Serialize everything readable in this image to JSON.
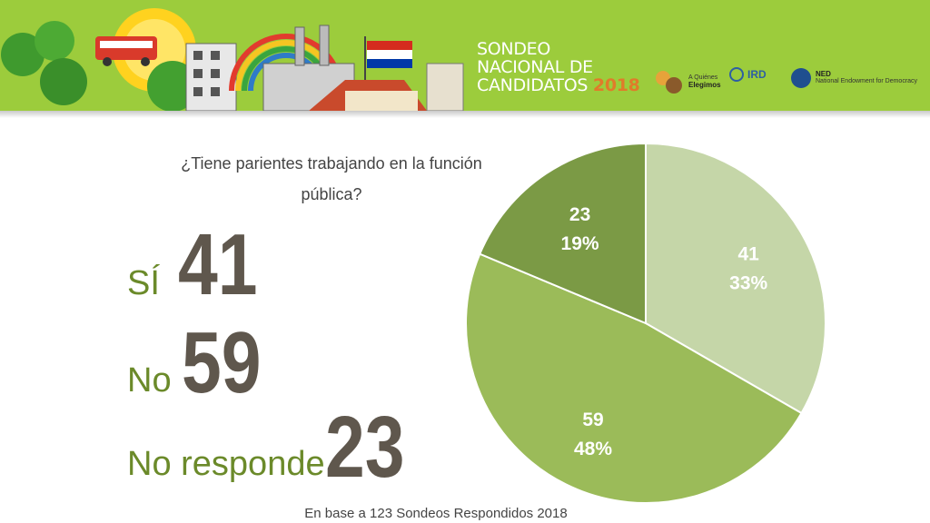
{
  "banner": {
    "title_lines": [
      "SONDEO",
      "NACIONAL DE",
      "CANDIDATOS"
    ],
    "title_year": "2018",
    "logos": [
      {
        "name": "a-quienes-elegimos",
        "lines": [
          "A Quiénes",
          "Elegimos"
        ]
      },
      {
        "name": "ird",
        "lines": [
          "IRD"
        ]
      },
      {
        "name": "ned",
        "lines": [
          "NED",
          "National Endowment for Democracy"
        ]
      }
    ],
    "flag_colors": [
      "#d52b1e",
      "#ffffff",
      "#0038a8"
    ]
  },
  "question": "¿Tiene parientes trabajando en la función pública?",
  "results": [
    {
      "label": "SÍ",
      "value": "41"
    },
    {
      "label": "No",
      "value": "59"
    },
    {
      "label": "No responde",
      "value": "23"
    }
  ],
  "footnote": "En base a 123 Sondeos Respondidos 2018",
  "colors": {
    "label": "#6b8a2a",
    "value": "#5f574d"
  },
  "chart_data": {
    "type": "pie",
    "start_angle": "12 o'clock, clockwise",
    "slices": [
      {
        "category": "Sí",
        "value": 41,
        "percent": "33%",
        "color": "#c5d6a8"
      },
      {
        "category": "No",
        "value": 59,
        "percent": "48%",
        "color": "#9bbb59"
      },
      {
        "category": "No responde",
        "value": 23,
        "percent": "19%",
        "color": "#7b9a45"
      }
    ]
  }
}
